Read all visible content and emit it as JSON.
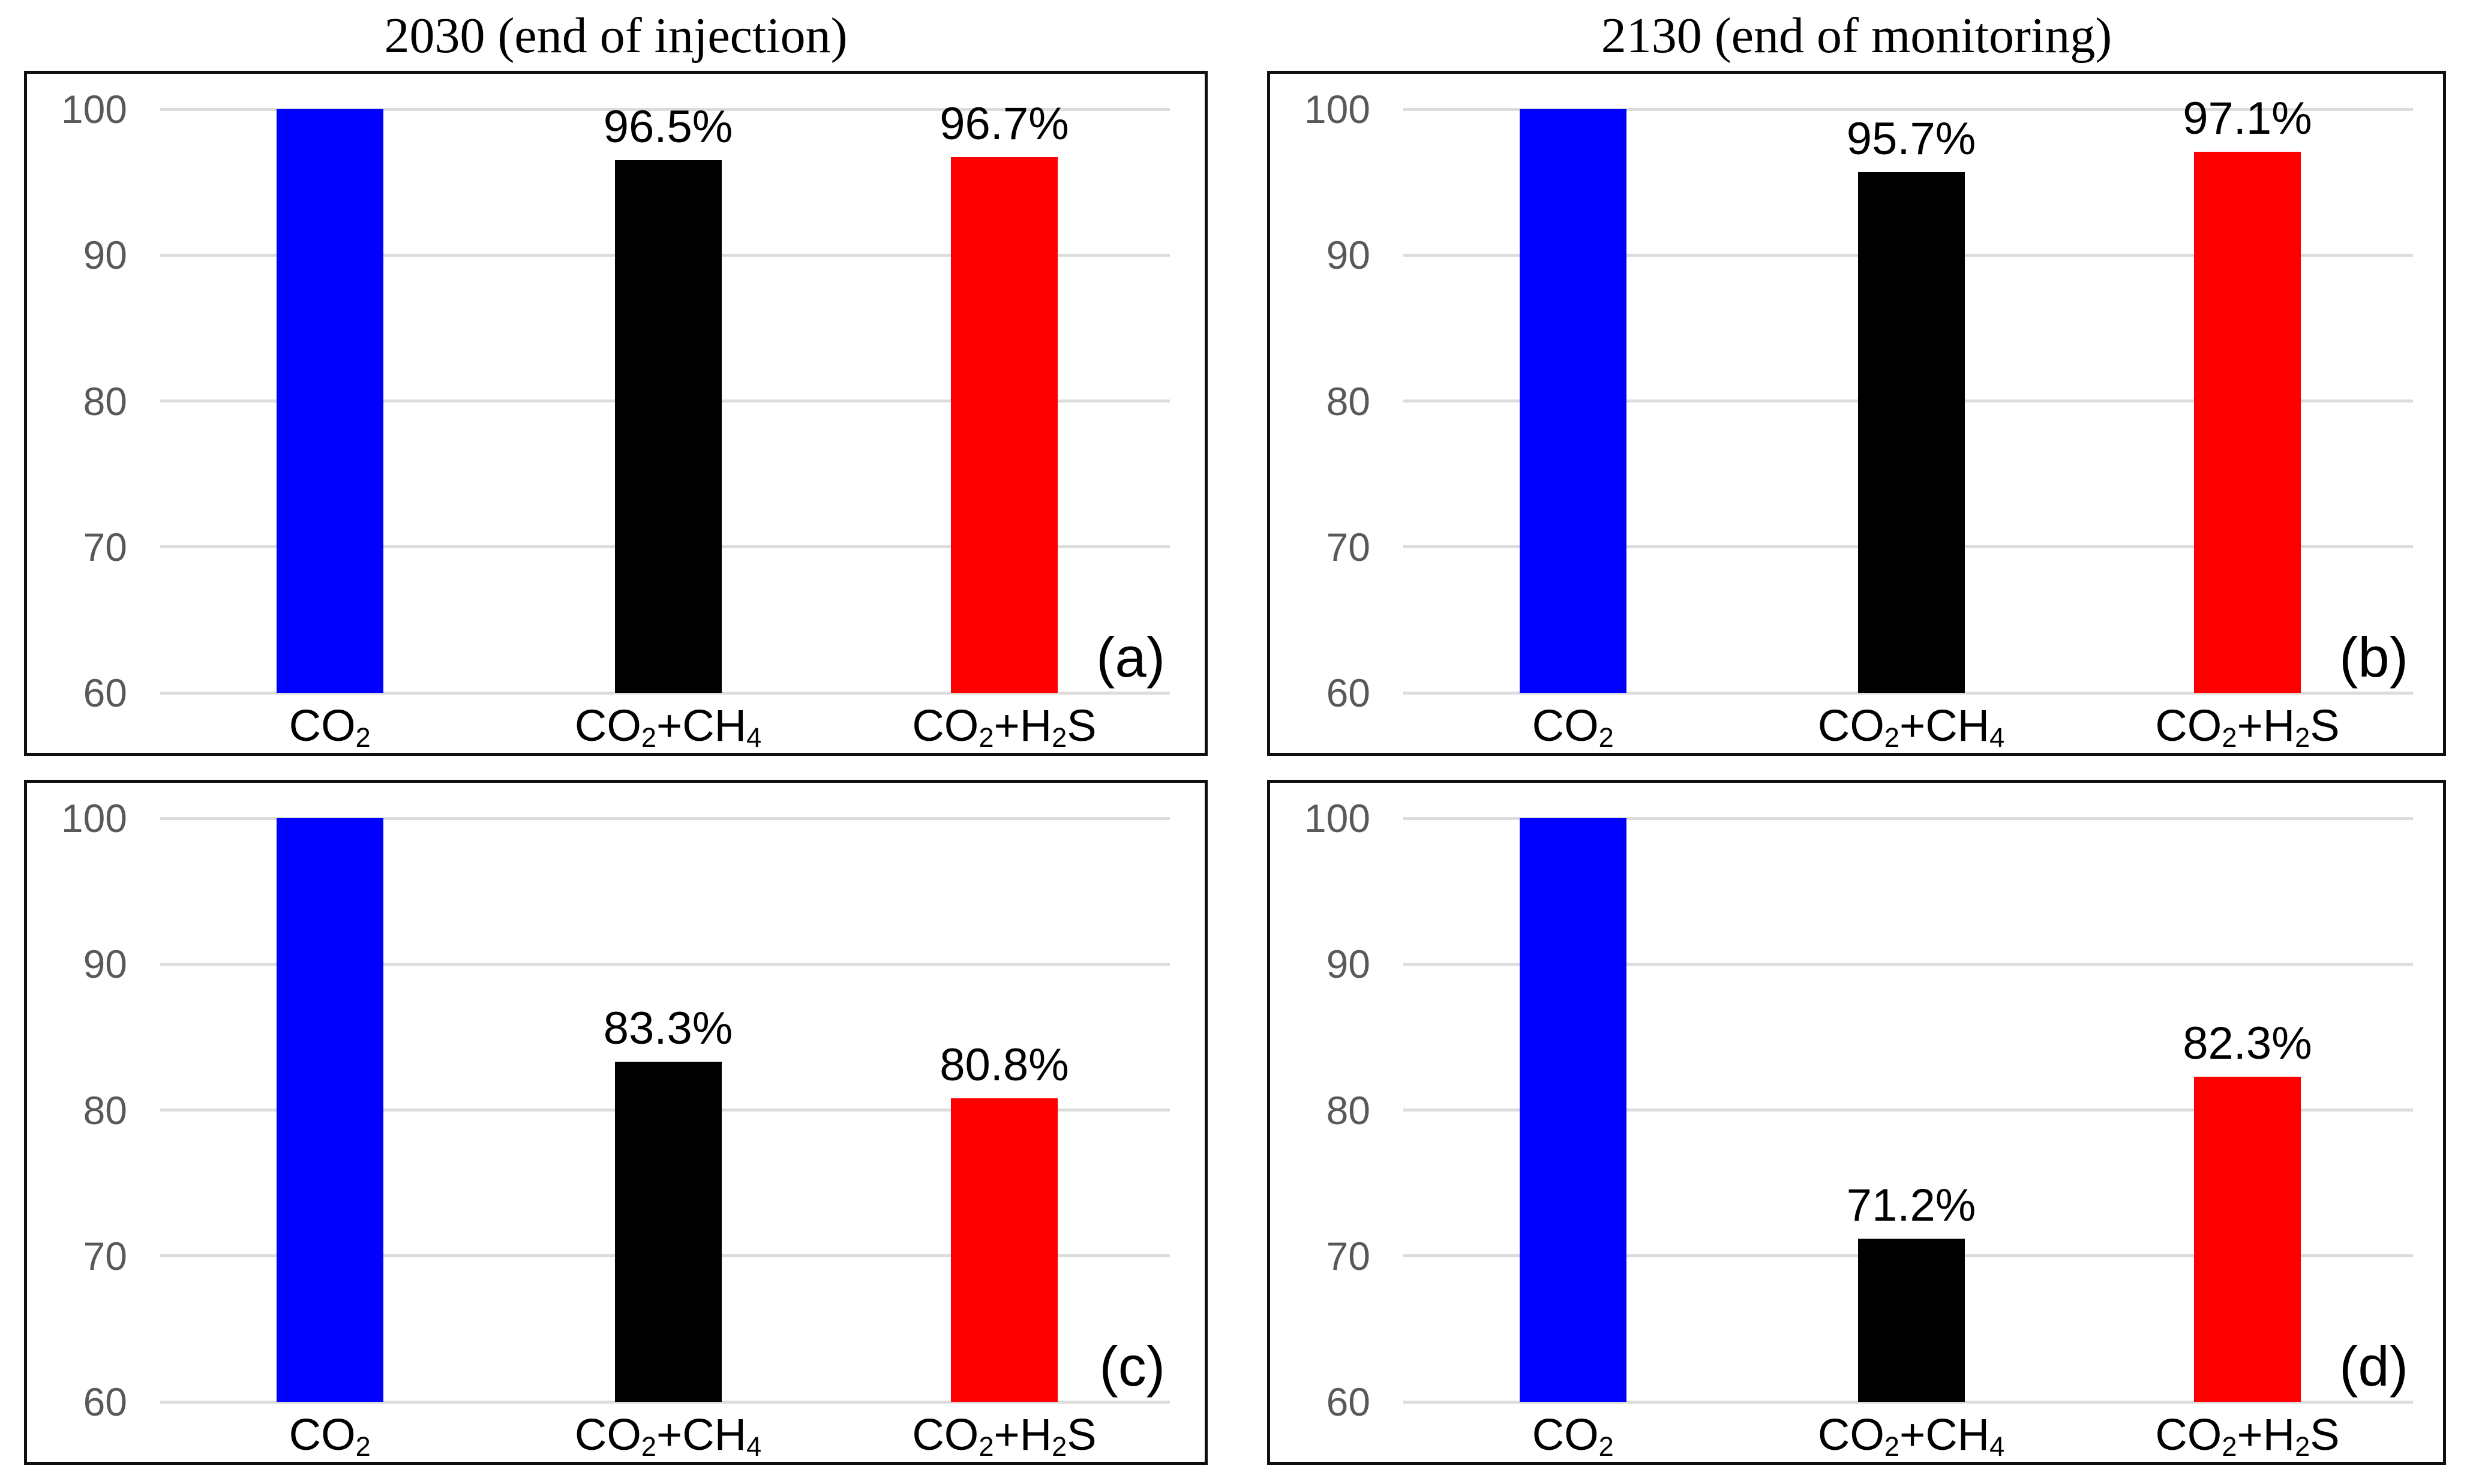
{
  "header": {
    "left_title": "2030 (end of injection)",
    "right_title": "2130 (end of monitoring)"
  },
  "styles": {
    "background": "#ffffff",
    "grid_color": "#dcdcdc",
    "tick_label_color": "#595959",
    "panel_border_color": "#0f0f0f",
    "title_color": "#000000"
  },
  "chart_data": [
    {
      "type": "bar",
      "panel_label": "(a)",
      "title": "2030 (end of injection)",
      "categories": [
        "CO2",
        "CO2+CH4",
        "CO2+H2S"
      ],
      "values": [
        100,
        96.5,
        96.7
      ],
      "bar_labels": [
        "",
        "96.5%",
        "96.7%"
      ],
      "colors": [
        "#0000ff",
        "#000000",
        "#ff0000"
      ],
      "ylim": [
        60,
        100
      ],
      "yticks": [
        100,
        90,
        80,
        70,
        60
      ],
      "grid": true,
      "legend": false
    },
    {
      "type": "bar",
      "panel_label": "(b)",
      "title": "2130 (end of monitoring)",
      "categories": [
        "CO2",
        "CO2+CH4",
        "CO2+H2S"
      ],
      "values": [
        100,
        95.7,
        97.1
      ],
      "bar_labels": [
        "",
        "95.7%",
        "97.1%"
      ],
      "colors": [
        "#0000ff",
        "#000000",
        "#ff0000"
      ],
      "ylim": [
        60,
        100
      ],
      "yticks": [
        100,
        90,
        80,
        70,
        60
      ],
      "grid": true,
      "legend": false
    },
    {
      "type": "bar",
      "panel_label": "(c)",
      "title": "",
      "categories": [
        "CO2",
        "CO2+CH4",
        "CO2+H2S"
      ],
      "values": [
        100,
        83.3,
        80.8
      ],
      "bar_labels": [
        "",
        "83.3%",
        "80.8%"
      ],
      "colors": [
        "#0000ff",
        "#000000",
        "#ff0000"
      ],
      "ylim": [
        60,
        100
      ],
      "yticks": [
        100,
        90,
        80,
        70,
        60
      ],
      "grid": true,
      "legend": false
    },
    {
      "type": "bar",
      "panel_label": "(d)",
      "title": "",
      "categories": [
        "CO2",
        "CO2+CH4",
        "CO2+H2S"
      ],
      "values": [
        100,
        71.2,
        82.3
      ],
      "bar_labels": [
        "",
        "71.2%",
        "82.3%"
      ],
      "colors": [
        "#0000ff",
        "#000000",
        "#ff0000"
      ],
      "ylim": [
        60,
        100
      ],
      "yticks": [
        100,
        90,
        80,
        70,
        60
      ],
      "grid": true,
      "legend": false
    }
  ]
}
